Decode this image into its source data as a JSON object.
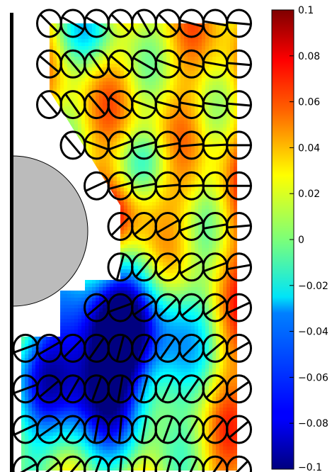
{
  "chart_data": {
    "type": "heatmap",
    "title": "",
    "xlabel": "",
    "ylabel": "",
    "colormap": "jet",
    "color_range": [
      -0.1,
      0.1
    ],
    "colorbar": {
      "ticks": [
        0.1,
        0.08,
        0.06,
        0.04,
        0.02,
        0,
        -0.02,
        -0.04,
        -0.06,
        -0.08,
        -0.1
      ],
      "tick_labels": [
        "0.1",
        "0.08",
        "0.06",
        "0.04",
        "0.02",
        "0",
        "−0.02",
        "−0.04",
        "−0.06",
        "−0.08",
        "−0.1"
      ]
    },
    "obstacle": {
      "shape": "half-disc",
      "color": "#bbbbbb"
    },
    "wall": {
      "side": "left",
      "color": "#000000"
    },
    "grid": false,
    "orientation_glyphs": {
      "shape": "circle-with-bar",
      "rows": [
        {
          "cols": [
            1,
            9
          ],
          "angles": [
            45,
            135,
            150,
            150,
            135,
            120,
            135,
            165,
            170,
            175
          ]
        },
        {
          "cols": [
            1,
            9
          ],
          "angles": [
            165,
            140,
            130,
            125,
            140,
            150,
            160,
            165,
            170,
            175
          ]
        },
        {
          "cols": [
            1,
            9
          ],
          "angles": [
            135,
            130,
            125,
            130,
            145,
            160,
            165,
            170,
            172,
            175
          ]
        },
        {
          "cols": [
            2,
            9
          ],
          "angles": [
            0,
            0,
            130,
            160,
            20,
            15,
            10,
            5,
            3,
            0
          ]
        },
        {
          "cols": [
            3,
            9
          ],
          "angles": [
            0,
            0,
            0,
            25,
            15,
            10,
            5,
            2,
            0,
            0
          ]
        },
        {
          "cols": [
            4,
            9
          ],
          "angles": [
            0,
            0,
            0,
            0,
            45,
            40,
            30,
            20,
            10,
            5
          ]
        },
        {
          "cols": [
            4,
            9
          ],
          "angles": [
            0,
            0,
            0,
            0,
            75,
            50,
            40,
            30,
            20,
            10
          ]
        },
        {
          "cols": [
            3,
            9
          ],
          "angles": [
            0,
            0,
            0,
            40,
            20,
            35,
            45,
            40,
            35,
            25
          ]
        },
        {
          "cols": [
            0,
            9
          ],
          "angles": [
            20,
            30,
            45,
            55,
            75,
            65,
            55,
            45,
            40,
            30
          ]
        },
        {
          "cols": [
            0,
            9
          ],
          "angles": [
            20,
            40,
            60,
            70,
            80,
            75,
            65,
            55,
            45,
            35
          ]
        },
        {
          "cols": [
            0,
            9
          ],
          "angles": [
            25,
            35,
            55,
            80,
            85,
            80,
            70,
            60,
            50,
            40
          ]
        },
        {
          "cols": [
            0,
            9
          ],
          "angles": [
            30,
            40,
            50,
            70,
            85,
            85,
            75,
            65,
            55,
            45
          ]
        }
      ]
    }
  }
}
